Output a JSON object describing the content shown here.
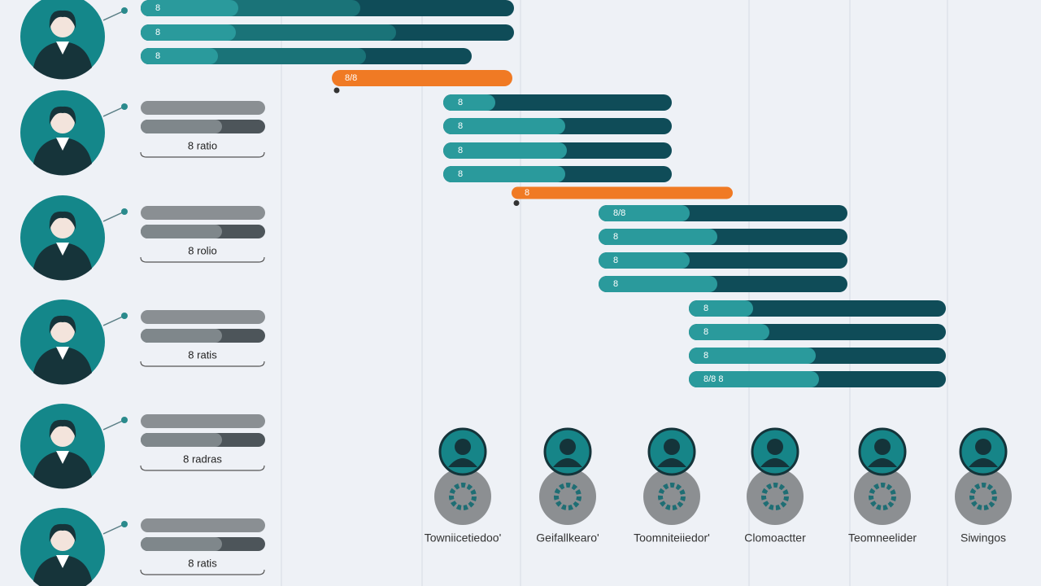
{
  "timeline": {
    "rows": [
      {
        "label": "8"
      },
      {
        "label": "8"
      },
      {
        "label": "8"
      },
      {
        "label": "8/8"
      },
      {
        "label": "8"
      },
      {
        "label": "8"
      },
      {
        "label": "8"
      },
      {
        "label": "8"
      },
      {
        "label": "8"
      },
      {
        "label": "8/8"
      },
      {
        "label": "8"
      },
      {
        "label": "8"
      },
      {
        "label": "8"
      },
      {
        "label": "8"
      },
      {
        "label": "8"
      },
      {
        "label": "8"
      },
      {
        "label": "8/8 8"
      }
    ]
  },
  "people": {
    "captions": [
      "8 ratio",
      "8 rolio",
      "8 ratis",
      "8 radras",
      "8 ratis"
    ]
  },
  "roles": [
    {
      "label": "Towniicetiedoo'"
    },
    {
      "label": "Geifallkearo'"
    },
    {
      "label": "Toomniteiiedor'"
    },
    {
      "label": "Clomoactter"
    },
    {
      "label": "Teomneelider"
    },
    {
      "label": "Siwingos"
    }
  ]
}
